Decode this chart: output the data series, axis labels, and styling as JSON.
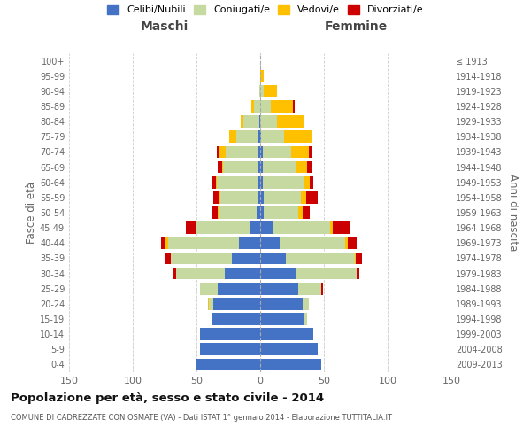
{
  "age_groups": [
    "0-4",
    "5-9",
    "10-14",
    "15-19",
    "20-24",
    "25-29",
    "30-34",
    "35-39",
    "40-44",
    "45-49",
    "50-54",
    "55-59",
    "60-64",
    "65-69",
    "70-74",
    "75-79",
    "80-84",
    "85-89",
    "90-94",
    "95-99",
    "100+"
  ],
  "birth_years": [
    "2009-2013",
    "2004-2008",
    "1999-2003",
    "1994-1998",
    "1989-1993",
    "1984-1988",
    "1979-1983",
    "1974-1978",
    "1969-1973",
    "1964-1968",
    "1959-1963",
    "1954-1958",
    "1949-1953",
    "1944-1948",
    "1939-1943",
    "1934-1938",
    "1929-1933",
    "1924-1928",
    "1919-1923",
    "1914-1918",
    "≤ 1913"
  ],
  "males": {
    "celibi": [
      51,
      47,
      47,
      38,
      37,
      33,
      28,
      22,
      17,
      8,
      3,
      2,
      2,
      2,
      2,
      2,
      1,
      0,
      0,
      0,
      0
    ],
    "coniugati": [
      0,
      0,
      0,
      0,
      3,
      14,
      38,
      48,
      55,
      42,
      29,
      29,
      32,
      27,
      25,
      17,
      12,
      5,
      1,
      0,
      0
    ],
    "vedovi": [
      0,
      0,
      0,
      0,
      1,
      0,
      0,
      0,
      2,
      0,
      1,
      1,
      1,
      1,
      5,
      5,
      2,
      2,
      0,
      0,
      0
    ],
    "divorziati": [
      0,
      0,
      0,
      0,
      0,
      0,
      3,
      5,
      4,
      8,
      5,
      5,
      3,
      3,
      2,
      0,
      0,
      0,
      0,
      0,
      0
    ]
  },
  "females": {
    "nubili": [
      48,
      45,
      42,
      35,
      33,
      30,
      28,
      20,
      15,
      10,
      3,
      3,
      2,
      2,
      2,
      1,
      0,
      0,
      0,
      0,
      0
    ],
    "coniugate": [
      0,
      0,
      0,
      2,
      5,
      18,
      48,
      54,
      52,
      45,
      27,
      29,
      32,
      26,
      22,
      18,
      13,
      8,
      3,
      0,
      0
    ],
    "vedove": [
      0,
      0,
      0,
      0,
      0,
      0,
      0,
      1,
      2,
      2,
      3,
      4,
      5,
      9,
      14,
      21,
      22,
      18,
      10,
      3,
      0
    ],
    "divorziate": [
      0,
      0,
      0,
      0,
      0,
      1,
      2,
      5,
      7,
      14,
      6,
      9,
      3,
      3,
      3,
      1,
      0,
      1,
      0,
      0,
      0
    ]
  },
  "colors": {
    "celibi": "#4472c4",
    "coniugati": "#c5d9a0",
    "vedovi": "#ffc000",
    "divorziati": "#cc0000"
  },
  "legend_labels": [
    "Celibi/Nubili",
    "Coniugati/e",
    "Vedovi/e",
    "Divorziati/e"
  ],
  "title": "Popolazione per età, sesso e stato civile - 2014",
  "subtitle": "COMUNE DI CADREZZATE CON OSMATE (VA) - Dati ISTAT 1° gennaio 2014 - Elaborazione TUTTITALIA.IT",
  "xlabel_left": "Maschi",
  "xlabel_right": "Femmine",
  "ylabel_left": "Fasce di età",
  "ylabel_right": "Anni di nascita",
  "xlim": 150,
  "background_color": "#ffffff",
  "grid_color": "#cccccc"
}
